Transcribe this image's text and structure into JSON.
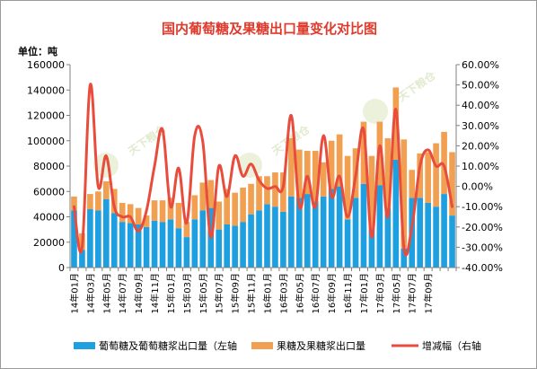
{
  "chart_data": {
    "type": "bar+line",
    "title": "国内葡萄糖及果糖出口量变化对比图",
    "unit_label": "单位：吨",
    "y_left": {
      "min": 0,
      "max": 160000,
      "ticks": [
        0,
        20000,
        40000,
        60000,
        80000,
        100000,
        120000,
        140000,
        160000
      ]
    },
    "y_right": {
      "min": -40,
      "max": 60,
      "ticks": [
        "-40.00%",
        "-30.00%",
        "-20.00%",
        "-10.00%",
        "0.00%",
        "10.00%",
        "20.00%",
        "30.00%",
        "40.00%",
        "50.00%",
        "60.00%"
      ]
    },
    "x_tick_labels": [
      "14年01月",
      "14年03月",
      "14年05月",
      "14年07月",
      "14年09月",
      "14年11月",
      "15年01月",
      "15年03月",
      "15年05月",
      "15年07月",
      "15年09月",
      "15年11月",
      "16年01月",
      "16年03月",
      "16年05月",
      "16年07月",
      "16年09月",
      "16年11月",
      "17年01月",
      "17年03月",
      "17年05月",
      "17年07月",
      "17年09月"
    ],
    "series": [
      {
        "name": "葡萄糖及葡萄糖浆出口量（左轴",
        "axis": "left",
        "color": "#1ea0e0",
        "values": [
          45000,
          14000,
          46000,
          45000,
          54000,
          43000,
          36000,
          35000,
          34000,
          32000,
          37000,
          36000,
          38000,
          31000,
          24000,
          38000,
          45000,
          47000,
          30000,
          34000,
          33000,
          36000,
          42000,
          45000,
          50000,
          48000,
          44000,
          56000,
          55000,
          58000,
          52000,
          56000,
          62000,
          64000,
          38000,
          55000,
          66000,
          30000,
          65000,
          47000,
          85000,
          15000,
          55000,
          55000,
          51000,
          48000,
          58000,
          41000
        ]
      },
      {
        "name": "果糖及果糖浆出口量",
        "axis": "left",
        "color": "#f0a050",
        "values": [
          11000,
          13000,
          12000,
          15000,
          14000,
          19000,
          15000,
          15000,
          13000,
          9000,
          16000,
          17000,
          17000,
          20000,
          12000,
          19000,
          22000,
          22000,
          22000,
          28000,
          26000,
          27000,
          24000,
          27000,
          22000,
          27000,
          31000,
          46000,
          38000,
          34000,
          40000,
          27000,
          38000,
          41000,
          50000,
          39000,
          49000,
          58000,
          50000,
          55000,
          57000,
          86000,
          22000,
          35000,
          40000,
          50000,
          49000,
          50000
        ]
      },
      {
        "name": "增减幅（右轴",
        "axis": "right",
        "color": "#e84c3d",
        "values": [
          -10,
          -30,
          50,
          0,
          15,
          -10,
          -15,
          -15,
          -22,
          -12,
          10,
          28,
          -10,
          9,
          -18,
          25,
          22,
          -25,
          10,
          -5,
          15,
          5,
          11,
          3,
          -1,
          0,
          0,
          35,
          -10,
          5,
          -10,
          25,
          -5,
          5,
          -15,
          5,
          28,
          -25,
          20,
          -15,
          38,
          -30,
          -20,
          10,
          18,
          10,
          10,
          -10
        ]
      }
    ],
    "legend_placement": "bottom",
    "grid": false,
    "watermark": "天下粮仓"
  }
}
